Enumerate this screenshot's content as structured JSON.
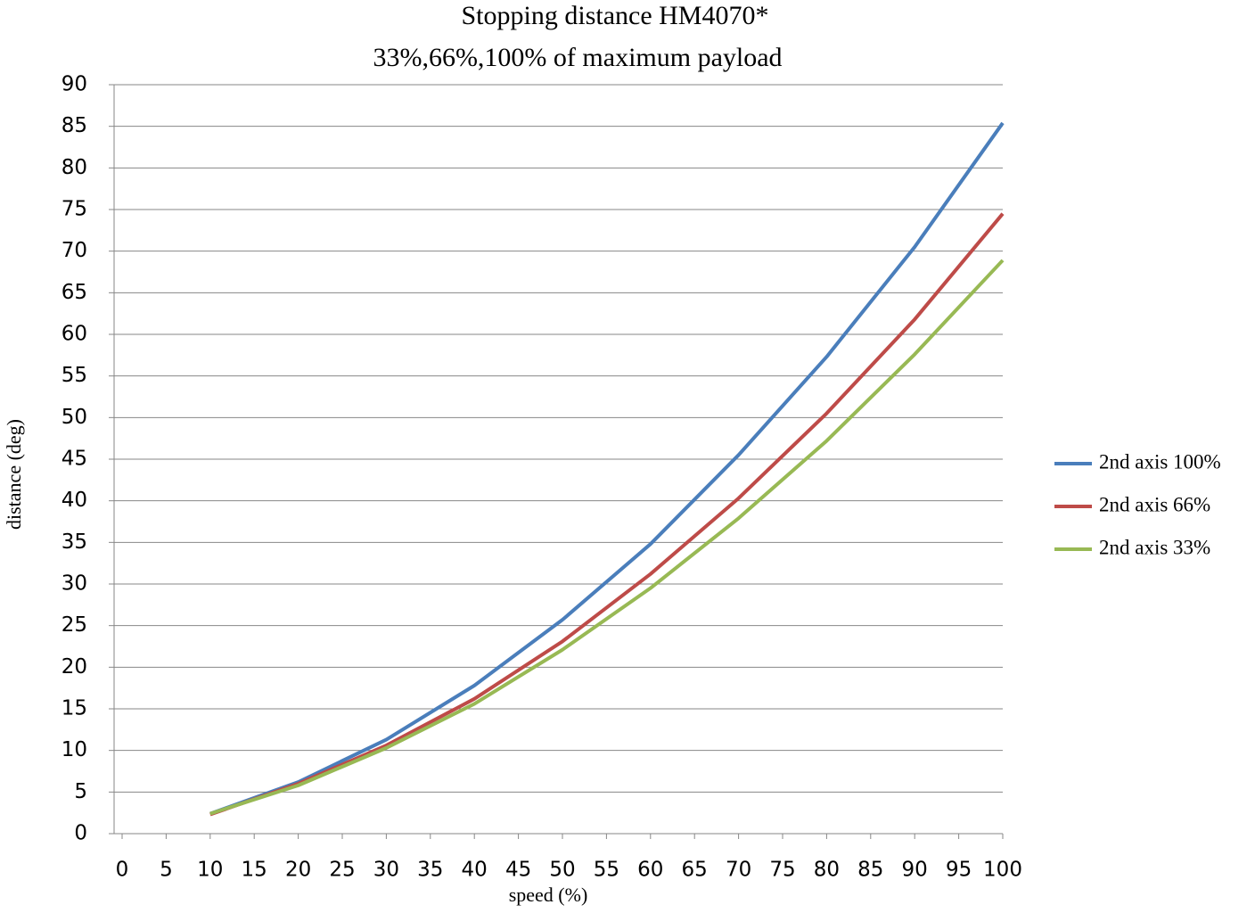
{
  "chart_data": {
    "type": "line",
    "title": "Stopping distance HM4070*",
    "subtitle": "33%,66%,100% of maximum payload",
    "x_label": "speed (%)",
    "y_label": "distance (deg)",
    "x": [
      10,
      20,
      30,
      40,
      50,
      60,
      70,
      80,
      90,
      100
    ],
    "series": [
      {
        "name": "2nd axis 100%",
        "color": "#4a7ebb",
        "values": [
          2.4,
          6.2,
          11.3,
          17.8,
          25.7,
          34.8,
          45.5,
          57.3,
          70.5,
          85.4
        ]
      },
      {
        "name": "2nd axis 66%",
        "color": "#be4b48",
        "values": [
          2.3,
          6.0,
          10.6,
          16.2,
          23.1,
          31.2,
          40.3,
          50.5,
          61.8,
          74.5
        ]
      },
      {
        "name": "2nd axis 33%",
        "color": "#98b954",
        "values": [
          2.4,
          5.8,
          10.3,
          15.6,
          22.1,
          29.5,
          37.9,
          47.2,
          57.6,
          68.9
        ]
      }
    ],
    "xlim": [
      0,
      100
    ],
    "xticks": [
      0,
      5,
      10,
      15,
      20,
      25,
      30,
      35,
      40,
      45,
      50,
      55,
      60,
      65,
      70,
      75,
      80,
      85,
      90,
      95,
      100
    ],
    "ylim": [
      0,
      90
    ],
    "yticks": [
      0,
      5,
      10,
      15,
      20,
      25,
      30,
      35,
      40,
      45,
      50,
      55,
      60,
      65,
      70,
      75,
      80,
      85,
      90
    ],
    "grid": true,
    "legend": "right"
  }
}
